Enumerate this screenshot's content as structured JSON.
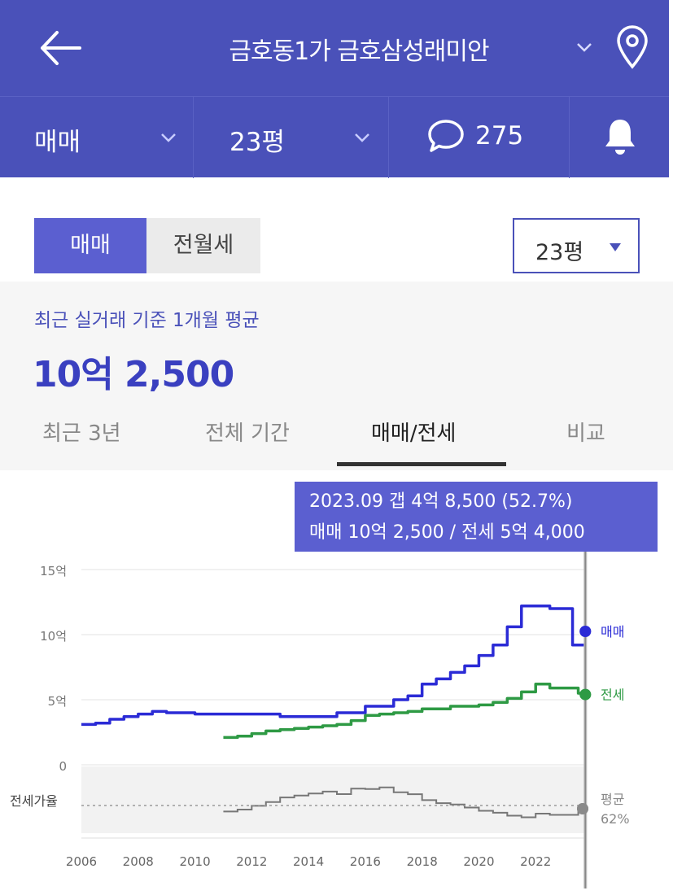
{
  "header": {
    "title": "금호동1가 금호삼성래미안",
    "icons": {
      "back": "back-arrow-icon",
      "dropdown": "chevron-down-icon",
      "location": "location-pin-icon"
    }
  },
  "filters": {
    "trade_type": "매매",
    "size": "23평",
    "comment_count": "275",
    "icons": {
      "comment": "chat-bubble-icon",
      "notify": "bell-icon"
    }
  },
  "toggle": {
    "sale": "매매",
    "lease": "전월세",
    "size_select": "23평"
  },
  "summary": {
    "label": "최근 실거래 기준 1개월 평균",
    "value": "10억 2,500"
  },
  "tabs": [
    {
      "label": "최근 3년"
    },
    {
      "label": "전체 기간"
    },
    {
      "label": "매매/전세"
    },
    {
      "label": "비교"
    }
  ],
  "active_tab": "매매/전세",
  "tooltip": {
    "line1": "2023.09  갭 4억 8,500 (52.7%)",
    "line2": "매매 10억 2,500 / 전세 5억 4,000"
  },
  "colors": {
    "primary": "#4a51b9",
    "accent": "#5b5fd0",
    "sale_line": "#2b2bd6",
    "lease_line": "#2e9a44",
    "ratio_line": "#777777"
  },
  "chart_data": {
    "type": "line",
    "y_ticks": [
      "15억",
      "10억",
      "5억",
      "0"
    ],
    "y_tick_values": [
      15,
      10,
      5,
      0
    ],
    "ylim": [
      0,
      15
    ],
    "x_ticks": [
      "2006",
      "2008",
      "2010",
      "2012",
      "2014",
      "2016",
      "2018",
      "2020",
      "2022"
    ],
    "x_tick_values": [
      2006,
      2008,
      2010,
      2012,
      2014,
      2016,
      2018,
      2020,
      2022
    ],
    "xlim": [
      2006,
      2024
    ],
    "series": [
      {
        "name": "매매",
        "x": [
          2006.0,
          2006.5,
          2007.0,
          2007.5,
          2008.0,
          2008.5,
          2009.0,
          2010.0,
          2011.0,
          2012.0,
          2013.0,
          2014.0,
          2015.0,
          2016.0,
          2017.0,
          2017.5,
          2018.0,
          2018.5,
          2019.0,
          2019.5,
          2020.0,
          2020.5,
          2021.0,
          2021.5,
          2022.0,
          2022.5,
          2023.0,
          2023.3,
          2023.75
        ],
        "y": [
          3.1,
          3.2,
          3.5,
          3.7,
          3.9,
          4.1,
          4.0,
          3.9,
          3.9,
          3.9,
          3.7,
          3.7,
          4.0,
          4.5,
          5.0,
          5.3,
          6.2,
          6.6,
          7.1,
          7.6,
          8.4,
          9.2,
          10.6,
          12.2,
          12.2,
          12.0,
          12.0,
          9.2,
          10.25
        ]
      },
      {
        "name": "전세",
        "x": [
          2011.0,
          2011.5,
          2012.0,
          2012.5,
          2013.0,
          2013.5,
          2014.0,
          2014.5,
          2015.0,
          2015.5,
          2016.0,
          2016.5,
          2017.0,
          2017.5,
          2018.0,
          2018.5,
          2019.0,
          2019.5,
          2020.0,
          2020.5,
          2021.0,
          2021.5,
          2022.0,
          2022.5,
          2023.0,
          2023.5,
          2023.75
        ],
        "y": [
          2.1,
          2.2,
          2.4,
          2.6,
          2.7,
          2.8,
          2.9,
          3.0,
          3.1,
          3.4,
          3.8,
          3.9,
          4.0,
          4.1,
          4.3,
          4.3,
          4.5,
          4.5,
          4.6,
          4.8,
          5.1,
          5.6,
          6.2,
          5.9,
          5.9,
          5.5,
          5.4
        ]
      }
    ],
    "ratio_label": "전세가율",
    "ratio_avg_label": "평균",
    "ratio_avg_value": "62%",
    "end_labels": [
      "매매",
      "전세"
    ],
    "selected_x": 2023.75,
    "grid": true,
    "legend": "right-end labels"
  }
}
